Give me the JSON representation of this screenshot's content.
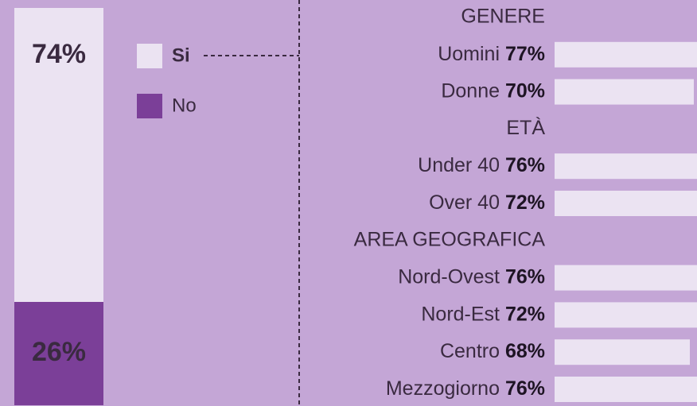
{
  "chart_data": [
    {
      "type": "stacked-bar",
      "series": [
        {
          "name": "Si",
          "color": "#ebe3f2",
          "values": [
            74
          ],
          "value_labels": [
            "74%"
          ]
        },
        {
          "name": "No",
          "color": "#7b3f98",
          "values": [
            26
          ],
          "value_labels": [
            "26%"
          ]
        }
      ]
    },
    {
      "type": "grouped-hbar",
      "color": "#ebe3f2",
      "groups": [
        {
          "name": "GENERE",
          "categories": [
            "Uomini",
            "Donne"
          ],
          "values": [
            77,
            70
          ],
          "value_labels": [
            "77%",
            "70%"
          ]
        },
        {
          "name": "ETÀ",
          "categories": [
            "Under 40",
            "Over 40"
          ],
          "values": [
            76,
            72
          ],
          "value_labels": [
            "76%",
            "72%"
          ]
        },
        {
          "name": "AREA GEOGRAFICA",
          "categories": [
            "Nord-Ovest",
            "Nord-Est",
            "Centro",
            "Mezzogiorno"
          ],
          "values": [
            76,
            72,
            68,
            76
          ],
          "value_labels": [
            "76%",
            "72%",
            "68%",
            "76%"
          ]
        }
      ]
    }
  ]
}
